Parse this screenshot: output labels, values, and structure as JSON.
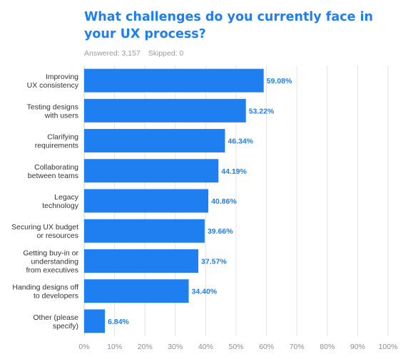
{
  "title": "What challenges do you currently face in your UX process?",
  "answered": "Answered: 3,157",
  "skipped": "Skipped: 0",
  "colors": {
    "bar": "#1f7ef0",
    "value_label": "#1f7ef0",
    "grid": "#e3e3e3",
    "tick": "#8e8e8e",
    "category": "#333333",
    "title": "#1f7ef0"
  },
  "chart_data": {
    "type": "bar",
    "orientation": "horizontal",
    "title": "What challenges do you currently face in your UX process?",
    "categories": [
      [
        "Improving",
        "UX consistency"
      ],
      [
        "Testing designs",
        "with users"
      ],
      [
        "Clarifying",
        "requirements"
      ],
      [
        "Collaborating",
        "between teams"
      ],
      [
        "Legacy",
        "technology"
      ],
      [
        "Securing UX budget",
        "or resources"
      ],
      [
        "Getting buy-in or",
        "understanding",
        "from executives"
      ],
      [
        "Handing designs off",
        "to developers"
      ],
      [
        "Other (please",
        "specify)"
      ]
    ],
    "values": [
      59.08,
      53.22,
      46.34,
      44.19,
      40.86,
      39.66,
      37.57,
      34.4,
      6.84
    ],
    "value_labels": [
      "59.08%",
      "53.22%",
      "46.34%",
      "44.19%",
      "40.86%",
      "39.66%",
      "37.57%",
      "34.40%",
      "6.84%"
    ],
    "xlim": [
      0,
      100
    ],
    "xticks": [
      "0%",
      "10%",
      "20%",
      "30%",
      "40%",
      "50%",
      "60%",
      "70%",
      "80%",
      "90%",
      "100%"
    ],
    "grid": true,
    "legend": "none"
  }
}
